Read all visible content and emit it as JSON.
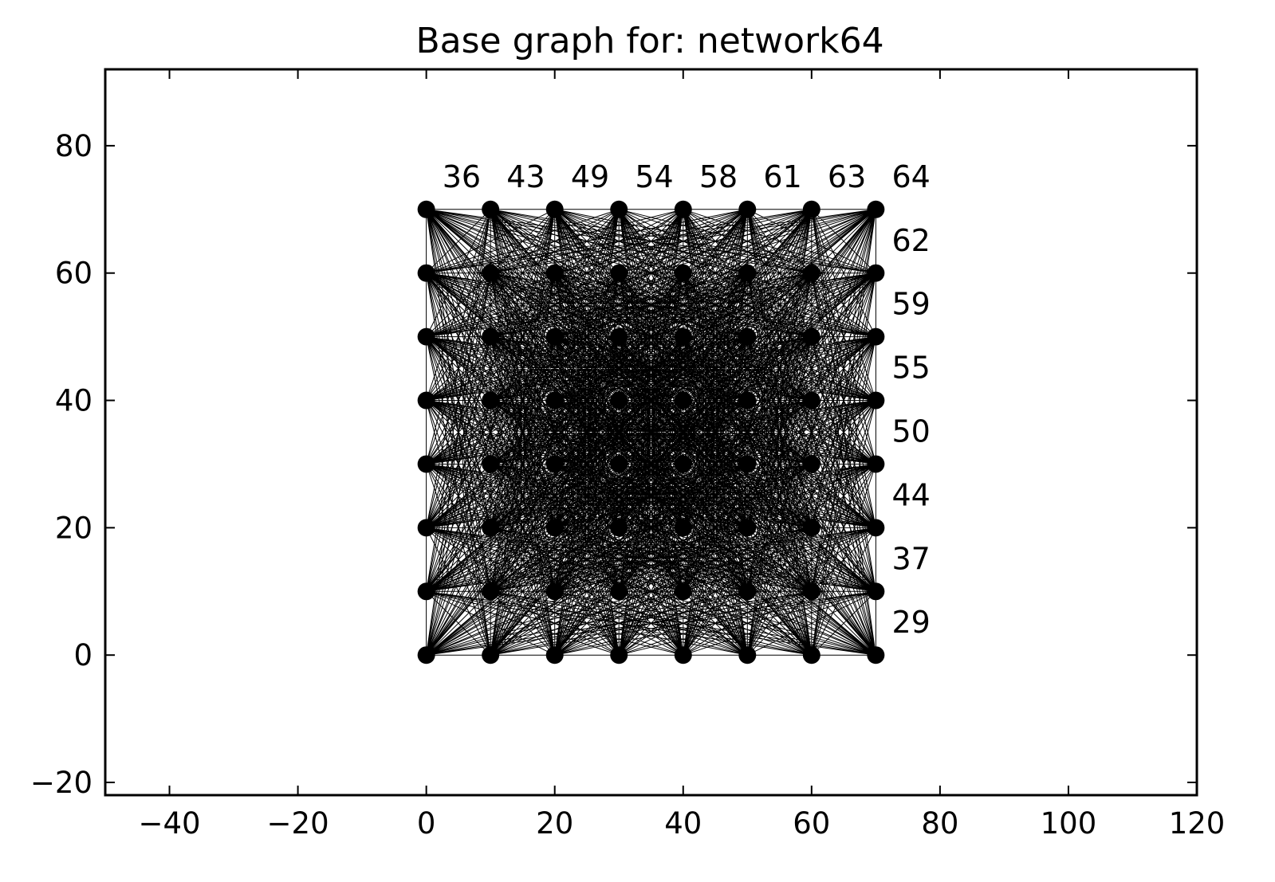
{
  "chart_data": {
    "type": "scatter",
    "title": "Base graph for: network64",
    "xlabel": "",
    "ylabel": "",
    "xlim": [
      -50,
      120
    ],
    "ylim": [
      -22,
      92
    ],
    "x_ticks": [
      -40,
      -20,
      0,
      20,
      40,
      60,
      80,
      100,
      120
    ],
    "y_ticks": [
      -20,
      0,
      20,
      40,
      60,
      80
    ],
    "x_tick_labels": [
      "−40",
      "−20",
      "0",
      "20",
      "40",
      "60",
      "80",
      "100",
      "120"
    ],
    "y_tick_labels": [
      "−20",
      "0",
      "20",
      "40",
      "60",
      "80"
    ],
    "grid": false,
    "nodes": {
      "x_values": [
        0,
        10,
        20,
        30,
        40,
        50,
        60,
        70
      ],
      "y_values": [
        0,
        10,
        20,
        30,
        40,
        50,
        60,
        70
      ],
      "color": "#000000"
    },
    "edges": "complete graph connecting every node pair",
    "top_labels": [
      {
        "x": 5.5,
        "y": 73.5,
        "text": "36"
      },
      {
        "x": 15.5,
        "y": 73.5,
        "text": "43"
      },
      {
        "x": 25.5,
        "y": 73.5,
        "text": "49"
      },
      {
        "x": 35.5,
        "y": 73.5,
        "text": "54"
      },
      {
        "x": 45.5,
        "y": 73.5,
        "text": "58"
      },
      {
        "x": 55.5,
        "y": 73.5,
        "text": "61"
      },
      {
        "x": 65.5,
        "y": 73.5,
        "text": "63"
      }
    ],
    "right_labels": [
      {
        "x": 75.5,
        "y": 73.5,
        "text": "64"
      },
      {
        "x": 75.5,
        "y": 63.5,
        "text": "62"
      },
      {
        "x": 75.5,
        "y": 53.5,
        "text": "59"
      },
      {
        "x": 75.5,
        "y": 43.5,
        "text": "55"
      },
      {
        "x": 75.5,
        "y": 33.5,
        "text": "50"
      },
      {
        "x": 75.5,
        "y": 23.5,
        "text": "44"
      },
      {
        "x": 75.5,
        "y": 13.5,
        "text": "37"
      },
      {
        "x": 75.5,
        "y": 3.5,
        "text": "29"
      }
    ]
  }
}
